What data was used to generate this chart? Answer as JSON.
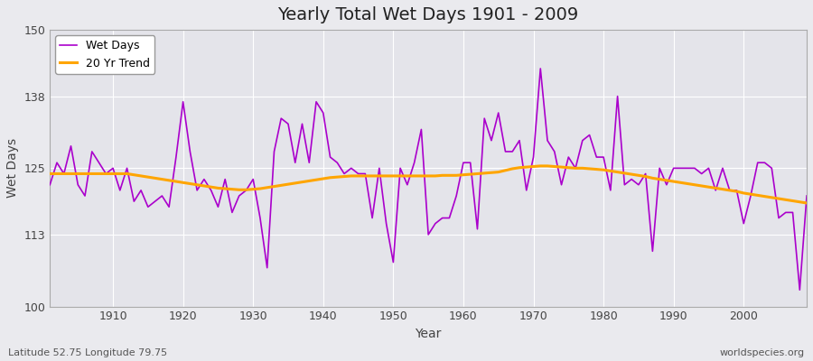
{
  "title": "Yearly Total Wet Days 1901 - 2009",
  "xlabel": "Year",
  "ylabel": "Wet Days",
  "bottom_left_label": "Latitude 52.75 Longitude 79.75",
  "bottom_right_label": "worldspecies.org",
  "wet_days_color": "#AA00CC",
  "trend_color": "#FFA500",
  "background_color": "#EAEAEE",
  "plot_bg_color": "#E4E4EA",
  "ylim": [
    100,
    150
  ],
  "yticks": [
    100,
    113,
    125,
    138,
    150
  ],
  "years": [
    1901,
    1902,
    1903,
    1904,
    1905,
    1906,
    1907,
    1908,
    1909,
    1910,
    1911,
    1912,
    1913,
    1914,
    1915,
    1916,
    1917,
    1918,
    1919,
    1920,
    1921,
    1922,
    1923,
    1924,
    1925,
    1926,
    1927,
    1928,
    1929,
    1930,
    1931,
    1932,
    1933,
    1934,
    1935,
    1936,
    1937,
    1938,
    1939,
    1940,
    1941,
    1942,
    1943,
    1944,
    1945,
    1946,
    1947,
    1948,
    1949,
    1950,
    1951,
    1952,
    1953,
    1954,
    1955,
    1956,
    1957,
    1958,
    1959,
    1960,
    1961,
    1962,
    1963,
    1964,
    1965,
    1966,
    1967,
    1968,
    1969,
    1970,
    1971,
    1972,
    1973,
    1974,
    1975,
    1976,
    1977,
    1978,
    1979,
    1980,
    1981,
    1982,
    1983,
    1984,
    1985,
    1986,
    1987,
    1988,
    1989,
    1990,
    1991,
    1992,
    1993,
    1994,
    1995,
    1996,
    1997,
    1998,
    1999,
    2000,
    2001,
    2002,
    2003,
    2004,
    2005,
    2006,
    2007,
    2008,
    2009
  ],
  "wet_days": [
    122,
    126,
    124,
    129,
    122,
    120,
    128,
    126,
    124,
    125,
    121,
    125,
    119,
    121,
    118,
    119,
    120,
    118,
    127,
    137,
    128,
    121,
    123,
    121,
    118,
    123,
    117,
    120,
    121,
    123,
    116,
    107,
    128,
    134,
    133,
    126,
    133,
    126,
    137,
    135,
    127,
    126,
    124,
    125,
    124,
    124,
    116,
    125,
    115,
    108,
    125,
    122,
    126,
    132,
    113,
    115,
    116,
    116,
    120,
    126,
    126,
    114,
    134,
    130,
    135,
    128,
    128,
    130,
    121,
    127,
    143,
    130,
    128,
    122,
    127,
    125,
    130,
    131,
    127,
    127,
    121,
    138,
    122,
    123,
    122,
    124,
    110,
    125,
    122,
    125,
    125,
    125,
    125,
    124,
    125,
    121,
    125,
    121,
    121,
    115,
    120,
    126,
    126,
    125,
    116,
    117,
    117,
    103,
    120
  ],
  "trend": [
    124.0,
    124.0,
    124.0,
    124.0,
    124.0,
    124.0,
    124.0,
    124.0,
    124.0,
    124.0,
    124.0,
    124.0,
    123.8,
    123.6,
    123.4,
    123.2,
    123.0,
    122.8,
    122.6,
    122.4,
    122.2,
    122.0,
    121.8,
    121.6,
    121.4,
    121.3,
    121.2,
    121.1,
    121.1,
    121.2,
    121.3,
    121.5,
    121.7,
    121.9,
    122.1,
    122.3,
    122.5,
    122.7,
    122.9,
    123.1,
    123.3,
    123.4,
    123.5,
    123.6,
    123.6,
    123.6,
    123.6,
    123.6,
    123.6,
    123.6,
    123.6,
    123.6,
    123.6,
    123.6,
    123.6,
    123.6,
    123.7,
    123.7,
    123.7,
    123.8,
    123.9,
    124.0,
    124.1,
    124.2,
    124.3,
    124.6,
    124.9,
    125.1,
    125.2,
    125.3,
    125.4,
    125.4,
    125.3,
    125.2,
    125.1,
    125.0,
    125.0,
    124.9,
    124.8,
    124.7,
    124.5,
    124.3,
    124.1,
    123.9,
    123.7,
    123.5,
    123.2,
    123.0,
    122.8,
    122.6,
    122.4,
    122.2,
    122.0,
    121.8,
    121.6,
    121.4,
    121.2,
    121.0,
    120.8,
    120.5,
    120.3,
    120.1,
    119.9,
    119.7,
    119.5,
    119.3,
    119.1,
    118.9,
    118.7
  ]
}
